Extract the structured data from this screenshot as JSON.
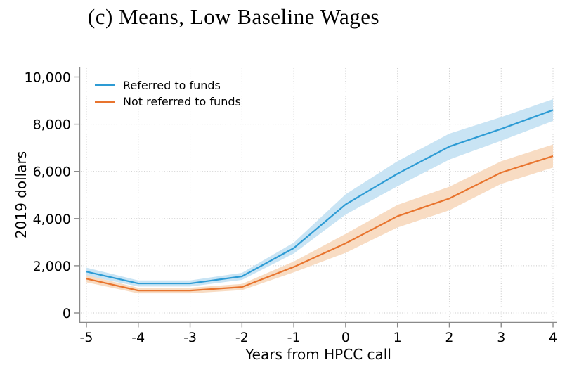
{
  "title": "(c) Means, Low Baseline Wages",
  "colors": {
    "referred_line": "#2D9BD4",
    "referred_band": "#C9E4F4",
    "not_referred_line": "#E8742E",
    "not_referred_band": "#F8DCC3",
    "grid": "#c6c6c6",
    "axis": "#8a8a8a",
    "text": "#000000",
    "background": "#ffffff"
  },
  "chart_data": {
    "type": "line",
    "title": "(c) Means, Low Baseline Wages",
    "xlabel": "Years from HPCC call",
    "ylabel": "2019 dollars",
    "xlim": [
      -5,
      4
    ],
    "ylim": [
      0,
      10000
    ],
    "xticks": [
      -5,
      -4,
      -3,
      -2,
      -1,
      0,
      1,
      2,
      3,
      4
    ],
    "xtick_labels": [
      "-5",
      "-4",
      "-3",
      "-2",
      "-1",
      "0",
      "1",
      "2",
      "3",
      "4"
    ],
    "yticks": [
      0,
      2000,
      4000,
      6000,
      8000,
      10000
    ],
    "ytick_labels": [
      "0",
      "2,000",
      "4,000",
      "6,000",
      "8,000",
      "10,000"
    ],
    "grid": true,
    "legend_position": "top-left",
    "x": [
      -5,
      -4,
      -3,
      -2,
      -1,
      0,
      1,
      2,
      3,
      4
    ],
    "series": [
      {
        "name": "Referred to funds",
        "values": [
          1750,
          1250,
          1250,
          1550,
          2750,
          4600,
          5900,
          7050,
          7800,
          8600
        ],
        "ci_lower": [
          1580,
          1120,
          1120,
          1400,
          2520,
          4170,
          5370,
          6500,
          7300,
          8140
        ],
        "ci_upper": [
          1920,
          1380,
          1380,
          1700,
          2980,
          5030,
          6430,
          7600,
          8300,
          9060
        ]
      },
      {
        "name": "Not referred to funds",
        "values": [
          1450,
          950,
          950,
          1100,
          1950,
          2950,
          4100,
          4850,
          5950,
          6650
        ],
        "ci_lower": [
          1300,
          830,
          830,
          970,
          1720,
          2550,
          3620,
          4350,
          5470,
          6160
        ],
        "ci_upper": [
          1600,
          1070,
          1070,
          1230,
          2180,
          3350,
          4580,
          5350,
          6430,
          7140
        ]
      }
    ]
  }
}
